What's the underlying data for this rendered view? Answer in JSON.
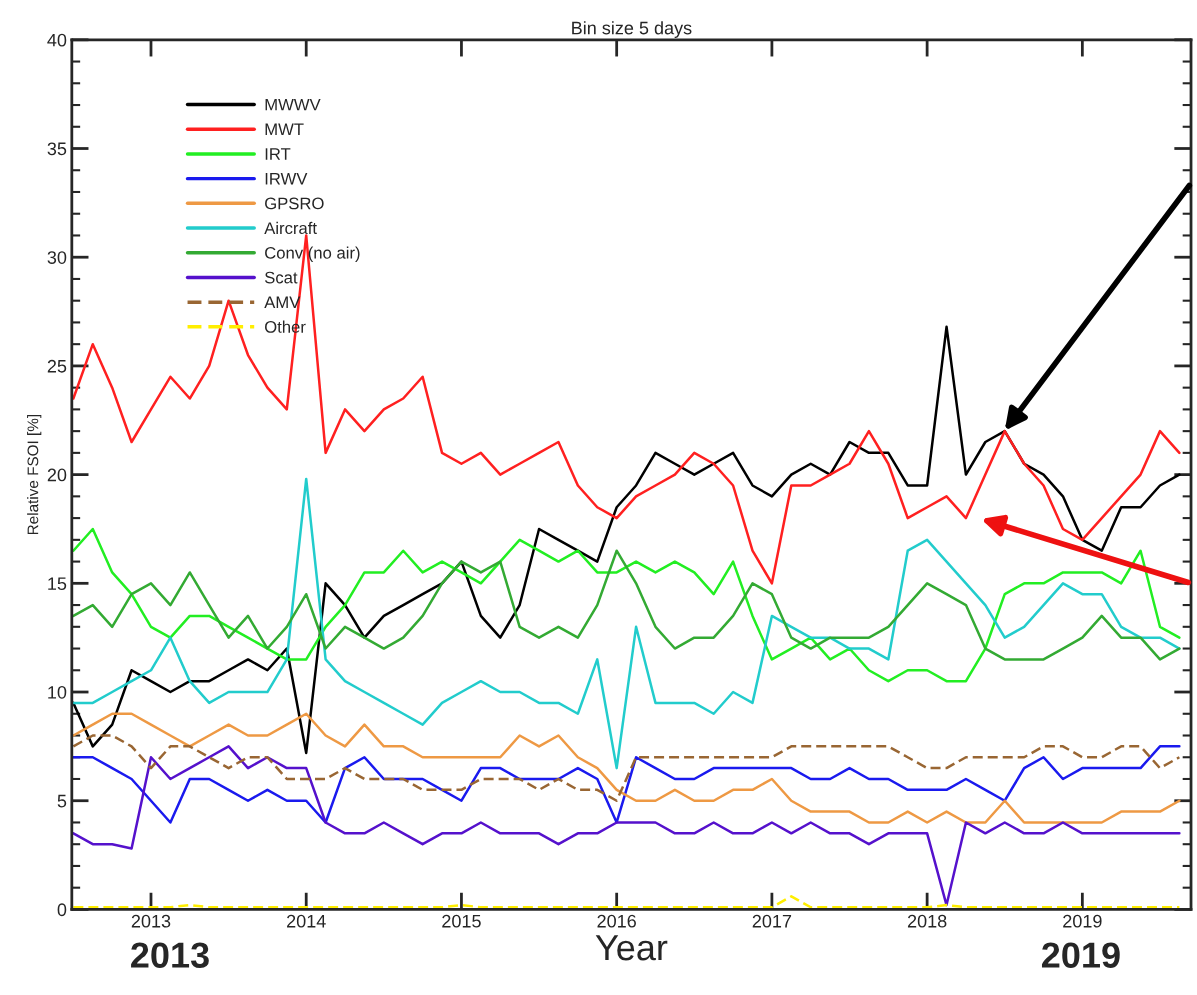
{
  "chart_data": {
    "type": "line",
    "title": "Bin size 5 days",
    "xlabel": "Year",
    "ylabel": "Relative FSOI [%]",
    "annotations": [
      "2013",
      "2019"
    ],
    "x": [
      2012.5,
      2012.625,
      2012.75,
      2012.875,
      2013.0,
      2013.125,
      2013.25,
      2013.375,
      2013.5,
      2013.625,
      2013.75,
      2013.875,
      2014.0,
      2014.125,
      2014.25,
      2014.375,
      2014.5,
      2014.625,
      2014.75,
      2014.875,
      2015.0,
      2015.125,
      2015.25,
      2015.375,
      2015.5,
      2015.625,
      2015.75,
      2015.875,
      2016.0,
      2016.125,
      2016.25,
      2016.375,
      2016.5,
      2016.625,
      2016.75,
      2016.875,
      2017.0,
      2017.125,
      2017.25,
      2017.375,
      2017.5,
      2017.625,
      2017.75,
      2017.875,
      2018.0,
      2018.125,
      2018.25,
      2018.375,
      2018.5,
      2018.625,
      2018.75,
      2018.875,
      2019.0,
      2019.125,
      2019.25,
      2019.375,
      2019.5,
      2019.625
    ],
    "series": [
      {
        "name": "MWWV",
        "color": "#000000",
        "values": [
          9.5,
          7.5,
          8.5,
          11,
          10.5,
          10,
          10.5,
          10.5,
          11,
          11.5,
          11,
          12,
          7.2,
          15,
          14,
          12.5,
          13.5,
          14,
          14.5,
          15,
          16,
          13.5,
          12.5,
          14,
          17.5,
          17,
          16.5,
          16,
          18.5,
          19.5,
          21,
          20.5,
          20,
          20.5,
          21,
          19.5,
          19,
          20,
          20.5,
          20,
          21.5,
          21,
          21,
          19.5,
          19.5,
          26.8,
          20,
          21.5,
          22,
          20.5,
          20,
          19,
          17,
          16.5,
          18.5,
          18.5,
          19.5,
          20
        ]
      },
      {
        "name": "MWT",
        "color": "#ff2020",
        "values": [
          23.5,
          26,
          24,
          21.5,
          23,
          24.5,
          23.5,
          25,
          28,
          25.5,
          24,
          23,
          31,
          21,
          23,
          22,
          23,
          23.5,
          24.5,
          21,
          20.5,
          21,
          20,
          20.5,
          21,
          21.5,
          19.5,
          18.5,
          18,
          19,
          19.5,
          20,
          21,
          20.5,
          19.5,
          16.5,
          15,
          19.5,
          19.5,
          20,
          20.5,
          22,
          20.5,
          18,
          18.5,
          19,
          18,
          20,
          22,
          20.5,
          19.5,
          17.5,
          17,
          18,
          19,
          20,
          22,
          21
        ]
      },
      {
        "name": "IRT",
        "color": "#22ee22",
        "values": [
          16.5,
          17.5,
          15.5,
          14.5,
          13,
          12.5,
          13.5,
          13.5,
          13,
          12.5,
          12,
          11.5,
          11.5,
          13,
          14,
          15.5,
          15.5,
          16.5,
          15.5,
          16,
          15.5,
          15,
          16,
          17,
          16.5,
          16,
          16.5,
          15.5,
          15.5,
          16,
          15.5,
          16,
          15.5,
          14.5,
          16,
          13.5,
          11.5,
          12,
          12.5,
          11.5,
          12,
          11,
          10.5,
          11,
          11,
          10.5,
          10.5,
          12,
          14.5,
          15,
          15,
          15.5,
          15.5,
          15.5,
          15,
          16.5,
          13,
          12.5
        ]
      },
      {
        "name": "IRWV",
        "color": "#1a1aee",
        "values": [
          7,
          7,
          6.5,
          6,
          5,
          4,
          6,
          6,
          5.5,
          5,
          5.5,
          5,
          5,
          4,
          6.5,
          7,
          6,
          6,
          6,
          5.5,
          5,
          6.5,
          6.5,
          6,
          6,
          6,
          6.5,
          6,
          4,
          7,
          6.5,
          6,
          6,
          6.5,
          6.5,
          6.5,
          6.5,
          6.5,
          6,
          6,
          6.5,
          6,
          6,
          5.5,
          5.5,
          5.5,
          6,
          5.5,
          5,
          6.5,
          7,
          6,
          6.5,
          6.5,
          6.5,
          6.5,
          7.5,
          7.5
        ]
      },
      {
        "name": "GPSRO",
        "color": "#ee9944",
        "values": [
          8,
          8.5,
          9,
          9,
          8.5,
          8,
          7.5,
          8,
          8.5,
          8,
          8,
          8.5,
          9,
          8,
          7.5,
          8.5,
          7.5,
          7.5,
          7,
          7,
          7,
          7,
          7,
          8,
          7.5,
          8,
          7,
          6.5,
          5.5,
          5,
          5,
          5.5,
          5,
          5,
          5.5,
          5.5,
          6,
          5,
          4.5,
          4.5,
          4.5,
          4,
          4,
          4.5,
          4,
          4.5,
          4,
          4,
          5,
          4,
          4,
          4,
          4,
          4,
          4.5,
          4.5,
          4.5,
          5
        ]
      },
      {
        "name": "Aircraft",
        "color": "#22cccc",
        "values": [
          9.5,
          9.5,
          10,
          10.5,
          11,
          12.5,
          10.5,
          9.5,
          10,
          10,
          10,
          11.5,
          19.8,
          11.5,
          10.5,
          10,
          9.5,
          9,
          8.5,
          9.5,
          10,
          10.5,
          10,
          10,
          9.5,
          9.5,
          9,
          11.5,
          6.5,
          13,
          9.5,
          9.5,
          9.5,
          9,
          10,
          9.5,
          13.5,
          13,
          12.5,
          12.5,
          12,
          12,
          11.5,
          16.5,
          17,
          16,
          15,
          14,
          12.5,
          13,
          14,
          15,
          14.5,
          14.5,
          13,
          12.5,
          12.5,
          12
        ]
      },
      {
        "name": "Conv (no air)",
        "color": "#33aa33",
        "values": [
          13.5,
          14,
          13,
          14.5,
          15,
          14,
          15.5,
          14,
          12.5,
          13.5,
          12,
          13,
          14.5,
          12,
          13,
          12.5,
          12,
          12.5,
          13.5,
          15,
          16,
          15.5,
          16,
          13,
          12.5,
          13,
          12.5,
          14,
          16.5,
          15,
          13,
          12,
          12.5,
          12.5,
          13.5,
          15,
          14.5,
          12.5,
          12,
          12.5,
          12.5,
          12.5,
          13,
          14,
          15,
          14.5,
          14,
          12,
          11.5,
          11.5,
          11.5,
          12,
          12.5,
          13.5,
          12.5,
          12.5,
          11.5,
          12
        ]
      },
      {
        "name": "Scat",
        "color": "#5511cc",
        "values": [
          3.5,
          3,
          3,
          2.8,
          7,
          6,
          6.5,
          7,
          7.5,
          6.5,
          7,
          6.5,
          6.5,
          4,
          3.5,
          3.5,
          4,
          3.5,
          3,
          3.5,
          3.5,
          4,
          3.5,
          3.5,
          3.5,
          3,
          3.5,
          3.5,
          4,
          4,
          4,
          3.5,
          3.5,
          4,
          3.5,
          3.5,
          4,
          3.5,
          4,
          3.5,
          3.5,
          3,
          3.5,
          3.5,
          3.5,
          0.2,
          4,
          3.5,
          4,
          3.5,
          3.5,
          4,
          3.5,
          3.5,
          3.5,
          3.5,
          3.5,
          3.5
        ]
      },
      {
        "name": "AMV",
        "color": "#996633",
        "line_style": "dashed",
        "values": [
          7.5,
          8,
          8,
          7.5,
          6.5,
          7.5,
          7.5,
          7,
          6.5,
          7,
          7,
          6,
          6,
          6,
          6.5,
          6,
          6,
          6,
          5.5,
          5.5,
          5.5,
          6,
          6,
          6,
          5.5,
          6,
          5.5,
          5.5,
          5,
          7,
          7,
          7,
          7,
          7,
          7,
          7,
          7,
          7.5,
          7.5,
          7.5,
          7.5,
          7.5,
          7.5,
          7,
          6.5,
          6.5,
          7,
          7,
          7,
          7,
          7.5,
          7.5,
          7,
          7,
          7.5,
          7.5,
          6.5,
          7
        ]
      },
      {
        "name": "Other",
        "color": "#ffee00",
        "line_style": "dashed",
        "values": [
          0.1,
          0.1,
          0.1,
          0.1,
          0.1,
          0.1,
          0.2,
          0.1,
          0.1,
          0.1,
          0.1,
          0.1,
          0.1,
          0.1,
          0.1,
          0.1,
          0.1,
          0.1,
          0.1,
          0.1,
          0.2,
          0.1,
          0.1,
          0.1,
          0.1,
          0.1,
          0.1,
          0.1,
          0.1,
          0.1,
          0.1,
          0.1,
          0.1,
          0.1,
          0.1,
          0.1,
          0.1,
          0.6,
          0.1,
          0.1,
          0.1,
          0.1,
          0.1,
          0.1,
          0.1,
          0.2,
          0.1,
          0.1,
          0.1,
          0.1,
          0.1,
          0.1,
          0.1,
          0.1,
          0.1,
          0.1,
          0.1,
          0.1
        ]
      }
    ],
    "xlim": [
      2012.49,
      2019.7
    ],
    "xticks": [
      2013,
      2014,
      2015,
      2016,
      2017,
      2018,
      2019
    ],
    "ylim": [
      0,
      40
    ],
    "yticks": [
      0,
      5,
      10,
      15,
      20,
      25,
      30,
      35,
      40
    ],
    "grid": false,
    "legend": "top left"
  }
}
